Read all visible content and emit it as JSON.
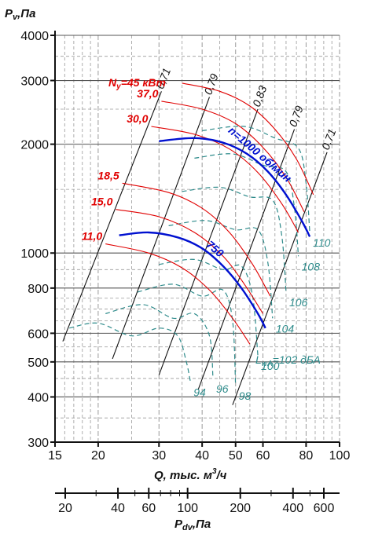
{
  "chart_data": {
    "type": "line",
    "y_axis": {
      "label_main": "P",
      "label_sub": "v",
      "label_unit": ",Па",
      "scale": "log",
      "ylim": [
        300,
        4000
      ],
      "ticks": [
        300,
        400,
        500,
        600,
        800,
        1000,
        2000,
        3000,
        4000
      ],
      "tick_labels": [
        "300",
        "400",
        "500",
        "600",
        "800",
        "1000",
        "2000",
        "3000",
        "4000"
      ]
    },
    "x_axis": {
      "label": "Q, тыс. м",
      "label_sup": "3",
      "label_tail": "/ч",
      "scale": "log",
      "xlim": [
        15,
        100
      ],
      "ticks": [
        15,
        20,
        30,
        40,
        50,
        60,
        80,
        100
      ],
      "tick_labels": [
        "15",
        "20",
        "30",
        "40",
        "50",
        "60",
        "80",
        "100"
      ]
    },
    "x2_axis": {
      "label_main": "P",
      "label_sub": "dv",
      "label_unit": ",Па",
      "ticks": [
        20,
        40,
        60,
        100,
        200,
        400,
        600
      ],
      "tick_labels": [
        "20",
        "40",
        "60",
        "100",
        "200",
        "400",
        "600"
      ]
    },
    "efficiency_lines": [
      {
        "label": "0,71",
        "x": [
          15.8,
          30.5
        ],
        "y": [
          570,
          2800
        ]
      },
      {
        "label": "0,79",
        "x": [
          22.0,
          42.0
        ],
        "y": [
          510,
          2700
        ]
      },
      {
        "label": "0,83",
        "x": [
          30.0,
          58.0
        ],
        "y": [
          460,
          2500
        ]
      },
      {
        "label": "0,79",
        "x": [
          39.0,
          74.0
        ],
        "y": [
          420,
          2200
        ]
      },
      {
        "label": "0,71",
        "x": [
          49.0,
          92.0
        ],
        "y": [
          380,
          1900
        ]
      }
    ],
    "speed_curves": [
      {
        "name": "n=1000 об/мин",
        "x": [
          30.0,
          38.0,
          46.0,
          54.0,
          62.0,
          70.0,
          78.0,
          82.0
        ],
        "y": [
          2040,
          2080,
          2020,
          1880,
          1680,
          1450,
          1220,
          1110
        ]
      },
      {
        "name": "750",
        "x": [
          23.0,
          28.0,
          34.0,
          40.0,
          46.0,
          52.0,
          58.0,
          61.0
        ],
        "y": [
          1120,
          1140,
          1105,
          1030,
          920,
          800,
          680,
          620
        ]
      }
    ],
    "power_curves": [
      {
        "label": "N",
        "label_sub": "у",
        "label_value": "=45 кВт",
        "x": [
          35.0,
          45.0,
          55.0,
          65.0,
          75.0,
          84.0
        ],
        "y": [
          2950,
          2800,
          2550,
          2200,
          1820,
          1450
        ]
      },
      {
        "label": "37,0",
        "x": [
          30.5,
          40.0,
          50.0,
          60.0,
          70.0,
          79.0
        ],
        "y": [
          2630,
          2500,
          2280,
          1960,
          1620,
          1300
        ]
      },
      {
        "label": "30,0",
        "x": [
          28.5,
          38.0,
          48.0,
          58.0,
          68.0,
          76.0
        ],
        "y": [
          2240,
          2130,
          1940,
          1670,
          1370,
          1140
        ]
      },
      {
        "label": "18,5",
        "x": [
          23.5,
          32.0,
          40.0,
          48.0,
          56.0,
          63.0
        ],
        "y": [
          1560,
          1470,
          1330,
          1140,
          930,
          760
        ]
      },
      {
        "label": "15,0",
        "x": [
          22.5,
          30.0,
          38.0,
          46.0,
          53.0,
          60.0
        ],
        "y": [
          1320,
          1260,
          1140,
          980,
          820,
          680
        ]
      },
      {
        "label": "11,0",
        "x": [
          21.0,
          28.0,
          35.0,
          42.0,
          49.0,
          55.0
        ],
        "y": [
          1060,
          1000,
          910,
          790,
          660,
          560
        ]
      }
    ],
    "noise_curves": [
      {
        "label": "94",
        "x": [
          16.5,
          20.0,
          25.0,
          30.0,
          34.0,
          36.0,
          37.0
        ],
        "y": [
          620,
          640,
          590,
          620,
          590,
          500,
          440
        ]
      },
      {
        "label": "96",
        "x": [
          21.0,
          27.0,
          33.0,
          38.0,
          42.0,
          43.0
        ],
        "y": [
          680,
          720,
          660,
          680,
          590,
          450
        ]
      },
      {
        "label": "98",
        "x": [
          26.0,
          33.0,
          40.0,
          46.0,
          49.0,
          50.0
        ],
        "y": [
          780,
          820,
          760,
          790,
          650,
          430
        ]
      },
      {
        "label": "100",
        "x": [
          30.0,
          38.0,
          46.0,
          52.0,
          56.0,
          58.0
        ],
        "y": [
          930,
          960,
          900,
          920,
          760,
          520
        ]
      },
      {
        "label": "104",
        "x": [
          32.0,
          41.0,
          50.0,
          58.0,
          62.0,
          64.0
        ],
        "y": [
          1190,
          1230,
          1160,
          1160,
          940,
          660
        ]
      },
      {
        "label": "106",
        "x": [
          35.0,
          45.0,
          55.0,
          64.0,
          68.0,
          70.0
        ],
        "y": [
          1480,
          1520,
          1430,
          1400,
          1120,
          780
        ]
      },
      {
        "label": "108",
        "x": [
          38.0,
          49.0,
          60.0,
          70.0,
          74.0,
          76.0
        ],
        "y": [
          1830,
          1880,
          1750,
          1680,
          1340,
          980
        ]
      },
      {
        "label": "110",
        "x": [
          40.0,
          53.0,
          65.0,
          76.0,
          80.0,
          82.0
        ],
        "y": [
          2180,
          2240,
          2080,
          1950,
          1560,
          1140
        ]
      }
    ],
    "noise_base_label": "L",
    "noise_base_sub": "wA",
    "noise_base_value": "=102 дБА",
    "grid": true,
    "colors": {
      "axis": "#111111",
      "grid": "#9a9a9a",
      "efficiency": "#111111",
      "speed": "#0010d0",
      "power": "#e00000",
      "noise": "#2e8b8b"
    }
  }
}
